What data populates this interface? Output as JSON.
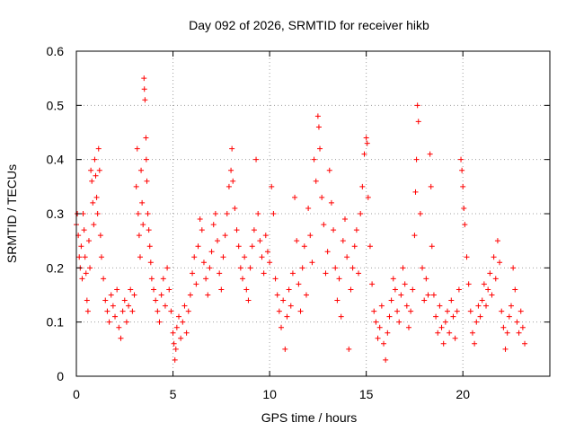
{
  "chart_data": {
    "type": "scatter",
    "title": "Day 092 of 2026, SRMTID for receiver hikb",
    "xlabel": "GPS time / hours",
    "ylabel": "SRMTID / TECUs",
    "xlim": [
      0,
      24.5
    ],
    "ylim": [
      0,
      0.6
    ],
    "x_ticks": [
      0,
      5,
      10,
      15,
      20
    ],
    "x_tick_labels": [
      "0",
      "5",
      "10",
      "15",
      "20"
    ],
    "y_ticks": [
      0,
      0.1,
      0.2,
      0.3,
      0.4,
      0.5,
      0.6
    ],
    "y_tick_labels": [
      "0",
      "0.1",
      "0.2",
      "0.3",
      "0.4",
      "0.5",
      "0.6"
    ],
    "grid": true,
    "marker": "+",
    "color": "#ff0000",
    "series": [
      {
        "name": "SRMTID",
        "points": [
          [
            0.0,
            0.28
          ],
          [
            0.05,
            0.3
          ],
          [
            0.1,
            0.26
          ],
          [
            0.15,
            0.22
          ],
          [
            0.2,
            0.2
          ],
          [
            0.25,
            0.24
          ],
          [
            0.3,
            0.18
          ],
          [
            0.35,
            0.3
          ],
          [
            0.4,
            0.27
          ],
          [
            0.45,
            0.22
          ],
          [
            0.5,
            0.19
          ],
          [
            0.55,
            0.14
          ],
          [
            0.6,
            0.12
          ],
          [
            0.65,
            0.25
          ],
          [
            0.7,
            0.2
          ],
          [
            0.75,
            0.38
          ],
          [
            0.8,
            0.36
          ],
          [
            0.85,
            0.32
          ],
          [
            0.9,
            0.28
          ],
          [
            0.95,
            0.4
          ],
          [
            1.0,
            0.37
          ],
          [
            1.05,
            0.33
          ],
          [
            1.1,
            0.3
          ],
          [
            1.15,
            0.42
          ],
          [
            1.2,
            0.38
          ],
          [
            1.25,
            0.26
          ],
          [
            1.3,
            0.22
          ],
          [
            1.4,
            0.18
          ],
          [
            1.5,
            0.14
          ],
          [
            1.6,
            0.12
          ],
          [
            1.7,
            0.1
          ],
          [
            1.8,
            0.15
          ],
          [
            1.9,
            0.13
          ],
          [
            2.0,
            0.11
          ],
          [
            2.1,
            0.16
          ],
          [
            2.2,
            0.09
          ],
          [
            2.3,
            0.07
          ],
          [
            2.4,
            0.12
          ],
          [
            2.5,
            0.14
          ],
          [
            2.6,
            0.1
          ],
          [
            2.7,
            0.13
          ],
          [
            2.8,
            0.16
          ],
          [
            2.9,
            0.12
          ],
          [
            3.0,
            0.15
          ],
          [
            3.1,
            0.35
          ],
          [
            3.15,
            0.42
          ],
          [
            3.2,
            0.3
          ],
          [
            3.25,
            0.26
          ],
          [
            3.3,
            0.22
          ],
          [
            3.35,
            0.38
          ],
          [
            3.4,
            0.32
          ],
          [
            3.45,
            0.28
          ],
          [
            3.5,
            0.55
          ],
          [
            3.52,
            0.53
          ],
          [
            3.55,
            0.51
          ],
          [
            3.6,
            0.44
          ],
          [
            3.62,
            0.4
          ],
          [
            3.65,
            0.36
          ],
          [
            3.7,
            0.3
          ],
          [
            3.75,
            0.27
          ],
          [
            3.8,
            0.24
          ],
          [
            3.85,
            0.21
          ],
          [
            3.9,
            0.18
          ],
          [
            4.0,
            0.16
          ],
          [
            4.1,
            0.14
          ],
          [
            4.2,
            0.12
          ],
          [
            4.3,
            0.1
          ],
          [
            4.4,
            0.15
          ],
          [
            4.5,
            0.18
          ],
          [
            4.6,
            0.13
          ],
          [
            4.7,
            0.2
          ],
          [
            4.8,
            0.16
          ],
          [
            4.9,
            0.12
          ],
          [
            5.0,
            0.08
          ],
          [
            5.05,
            0.06
          ],
          [
            5.1,
            0.03
          ],
          [
            5.15,
            0.05
          ],
          [
            5.2,
            0.09
          ],
          [
            5.3,
            0.11
          ],
          [
            5.4,
            0.07
          ],
          [
            5.5,
            0.1
          ],
          [
            5.6,
            0.13
          ],
          [
            5.7,
            0.08
          ],
          [
            5.8,
            0.12
          ],
          [
            5.9,
            0.15
          ],
          [
            6.0,
            0.19
          ],
          [
            6.1,
            0.22
          ],
          [
            6.2,
            0.17
          ],
          [
            6.3,
            0.24
          ],
          [
            6.4,
            0.29
          ],
          [
            6.5,
            0.27
          ],
          [
            6.6,
            0.21
          ],
          [
            6.7,
            0.18
          ],
          [
            6.8,
            0.15
          ],
          [
            6.9,
            0.2
          ],
          [
            7.0,
            0.23
          ],
          [
            7.1,
            0.28
          ],
          [
            7.2,
            0.3
          ],
          [
            7.3,
            0.25
          ],
          [
            7.4,
            0.19
          ],
          [
            7.5,
            0.16
          ],
          [
            7.6,
            0.22
          ],
          [
            7.7,
            0.26
          ],
          [
            7.8,
            0.3
          ],
          [
            7.9,
            0.35
          ],
          [
            8.0,
            0.38
          ],
          [
            8.05,
            0.42
          ],
          [
            8.1,
            0.36
          ],
          [
            8.2,
            0.31
          ],
          [
            8.3,
            0.27
          ],
          [
            8.4,
            0.24
          ],
          [
            8.5,
            0.2
          ],
          [
            8.6,
            0.18
          ],
          [
            8.7,
            0.22
          ],
          [
            8.8,
            0.16
          ],
          [
            8.9,
            0.14
          ],
          [
            9.0,
            0.2
          ],
          [
            9.1,
            0.24
          ],
          [
            9.2,
            0.27
          ],
          [
            9.3,
            0.4
          ],
          [
            9.4,
            0.3
          ],
          [
            9.5,
            0.25
          ],
          [
            9.6,
            0.22
          ],
          [
            9.7,
            0.19
          ],
          [
            9.8,
            0.26
          ],
          [
            9.9,
            0.23
          ],
          [
            10.0,
            0.21
          ],
          [
            10.1,
            0.35
          ],
          [
            10.2,
            0.3
          ],
          [
            10.3,
            0.18
          ],
          [
            10.4,
            0.15
          ],
          [
            10.5,
            0.12
          ],
          [
            10.6,
            0.09
          ],
          [
            10.7,
            0.14
          ],
          [
            10.8,
            0.05
          ],
          [
            10.9,
            0.11
          ],
          [
            11.0,
            0.16
          ],
          [
            11.1,
            0.13
          ],
          [
            11.2,
            0.19
          ],
          [
            11.3,
            0.33
          ],
          [
            11.4,
            0.25
          ],
          [
            11.5,
            0.17
          ],
          [
            11.6,
            0.12
          ],
          [
            11.7,
            0.2
          ],
          [
            11.8,
            0.24
          ],
          [
            11.9,
            0.15
          ],
          [
            12.0,
            0.31
          ],
          [
            12.1,
            0.26
          ],
          [
            12.2,
            0.21
          ],
          [
            12.3,
            0.4
          ],
          [
            12.4,
            0.36
          ],
          [
            12.5,
            0.48
          ],
          [
            12.55,
            0.46
          ],
          [
            12.6,
            0.42
          ],
          [
            12.7,
            0.33
          ],
          [
            12.8,
            0.28
          ],
          [
            12.9,
            0.19
          ],
          [
            13.0,
            0.23
          ],
          [
            13.1,
            0.38
          ],
          [
            13.2,
            0.32
          ],
          [
            13.3,
            0.27
          ],
          [
            13.4,
            0.2
          ],
          [
            13.5,
            0.14
          ],
          [
            13.6,
            0.18
          ],
          [
            13.7,
            0.11
          ],
          [
            13.8,
            0.25
          ],
          [
            13.9,
            0.29
          ],
          [
            14.0,
            0.22
          ],
          [
            14.1,
            0.05
          ],
          [
            14.2,
            0.16
          ],
          [
            14.3,
            0.2
          ],
          [
            14.4,
            0.24
          ],
          [
            14.5,
            0.27
          ],
          [
            14.6,
            0.19
          ],
          [
            14.7,
            0.3
          ],
          [
            14.8,
            0.35
          ],
          [
            14.9,
            0.41
          ],
          [
            15.0,
            0.44
          ],
          [
            15.05,
            0.43
          ],
          [
            15.1,
            0.33
          ],
          [
            15.2,
            0.24
          ],
          [
            15.3,
            0.17
          ],
          [
            15.4,
            0.12
          ],
          [
            15.5,
            0.1
          ],
          [
            15.6,
            0.07
          ],
          [
            15.7,
            0.09
          ],
          [
            15.8,
            0.13
          ],
          [
            15.9,
            0.06
          ],
          [
            16.0,
            0.03
          ],
          [
            16.1,
            0.08
          ],
          [
            16.2,
            0.11
          ],
          [
            16.3,
            0.14
          ],
          [
            16.4,
            0.18
          ],
          [
            16.5,
            0.16
          ],
          [
            16.6,
            0.12
          ],
          [
            16.7,
            0.1
          ],
          [
            16.8,
            0.15
          ],
          [
            16.9,
            0.2
          ],
          [
            17.0,
            0.17
          ],
          [
            17.1,
            0.13
          ],
          [
            17.2,
            0.09
          ],
          [
            17.3,
            0.12
          ],
          [
            17.4,
            0.16
          ],
          [
            17.5,
            0.26
          ],
          [
            17.55,
            0.34
          ],
          [
            17.6,
            0.4
          ],
          [
            17.65,
            0.5
          ],
          [
            17.7,
            0.47
          ],
          [
            17.8,
            0.3
          ],
          [
            17.9,
            0.2
          ],
          [
            18.0,
            0.14
          ],
          [
            18.1,
            0.18
          ],
          [
            18.2,
            0.15
          ],
          [
            18.3,
            0.41
          ],
          [
            18.35,
            0.35
          ],
          [
            18.4,
            0.24
          ],
          [
            18.5,
            0.15
          ],
          [
            18.6,
            0.11
          ],
          [
            18.7,
            0.08
          ],
          [
            18.8,
            0.13
          ],
          [
            18.9,
            0.09
          ],
          [
            19.0,
            0.06
          ],
          [
            19.1,
            0.1
          ],
          [
            19.2,
            0.12
          ],
          [
            19.3,
            0.08
          ],
          [
            19.4,
            0.14
          ],
          [
            19.5,
            0.11
          ],
          [
            19.6,
            0.07
          ],
          [
            19.7,
            0.12
          ],
          [
            19.8,
            0.16
          ],
          [
            19.9,
            0.4
          ],
          [
            19.95,
            0.38
          ],
          [
            20.0,
            0.35
          ],
          [
            20.05,
            0.31
          ],
          [
            20.1,
            0.28
          ],
          [
            20.2,
            0.22
          ],
          [
            20.3,
            0.17
          ],
          [
            20.4,
            0.12
          ],
          [
            20.5,
            0.08
          ],
          [
            20.6,
            0.06
          ],
          [
            20.7,
            0.1
          ],
          [
            20.8,
            0.13
          ],
          [
            20.9,
            0.11
          ],
          [
            21.0,
            0.14
          ],
          [
            21.1,
            0.17
          ],
          [
            21.2,
            0.13
          ],
          [
            21.3,
            0.16
          ],
          [
            21.4,
            0.19
          ],
          [
            21.5,
            0.15
          ],
          [
            21.6,
            0.22
          ],
          [
            21.7,
            0.18
          ],
          [
            21.8,
            0.25
          ],
          [
            21.9,
            0.21
          ],
          [
            22.0,
            0.12
          ],
          [
            22.1,
            0.09
          ],
          [
            22.2,
            0.05
          ],
          [
            22.3,
            0.08
          ],
          [
            22.4,
            0.11
          ],
          [
            22.5,
            0.13
          ],
          [
            22.6,
            0.2
          ],
          [
            22.7,
            0.16
          ],
          [
            22.8,
            0.1
          ],
          [
            22.9,
            0.08
          ],
          [
            23.0,
            0.12
          ],
          [
            23.1,
            0.09
          ],
          [
            23.2,
            0.06
          ]
        ]
      }
    ]
  }
}
